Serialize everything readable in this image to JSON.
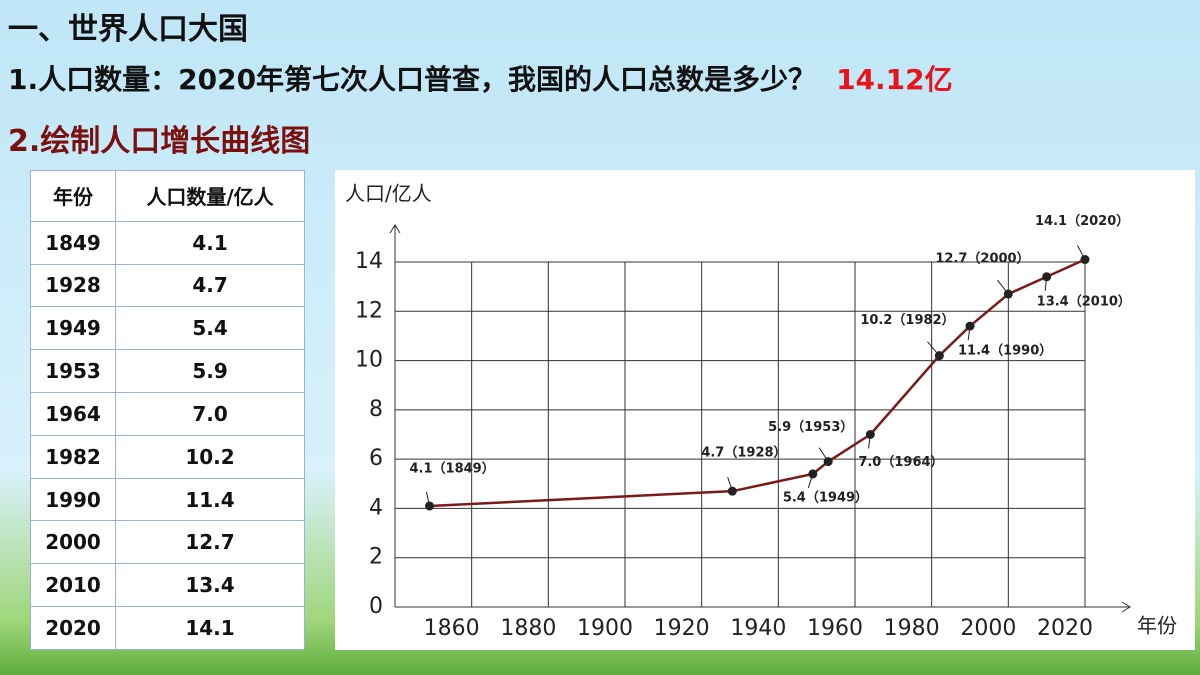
{
  "header": {
    "title": "一、世界人口大国",
    "question": "1.人口数量：2020年第七次人口普查，我国的人口总数是多少？",
    "answer": "14.12亿",
    "subtitle": "2.绘制人口增长曲线图"
  },
  "table": {
    "header": [
      "年份",
      "人口数量/亿人"
    ],
    "rows": [
      [
        "1849",
        "4.1"
      ],
      [
        "1928",
        "4.7"
      ],
      [
        "1949",
        "5.4"
      ],
      [
        "1953",
        "5.9"
      ],
      [
        "1964",
        "7.0"
      ],
      [
        "1982",
        "10.2"
      ],
      [
        "1990",
        "11.4"
      ],
      [
        "2000",
        "12.7"
      ],
      [
        "2010",
        "13.4"
      ],
      [
        "2020",
        "14.1"
      ]
    ]
  },
  "chart_data": {
    "type": "line",
    "ylabel": "人口/亿人",
    "xlabel": "年份",
    "x": [
      1849,
      1928,
      1949,
      1953,
      1964,
      1982,
      1990,
      2000,
      2010,
      2020
    ],
    "series": [
      {
        "color": "#7a1a1a",
        "values": [
          4.1,
          4.7,
          5.4,
          5.9,
          7.0,
          10.2,
          11.4,
          12.7,
          13.4,
          14.1
        ],
        "value_labels": [
          "4.1（1849）",
          "4.7（1928）",
          "5.4（1949）",
          "5.9（1953）",
          "7.0（1964）",
          "10.2（1982）",
          "11.4（1990）",
          "12.7（2000）",
          "13.4（2010）",
          "14.1（2020）"
        ]
      }
    ],
    "xlim": [
      1840,
      2020
    ],
    "xticks": [
      1860,
      1880,
      1900,
      1920,
      1940,
      1960,
      1980,
      2000,
      2020
    ],
    "ylim": [
      0,
      14
    ],
    "yticks": [
      0,
      2,
      4,
      6,
      8,
      10,
      12,
      14
    ],
    "grid": true
  }
}
